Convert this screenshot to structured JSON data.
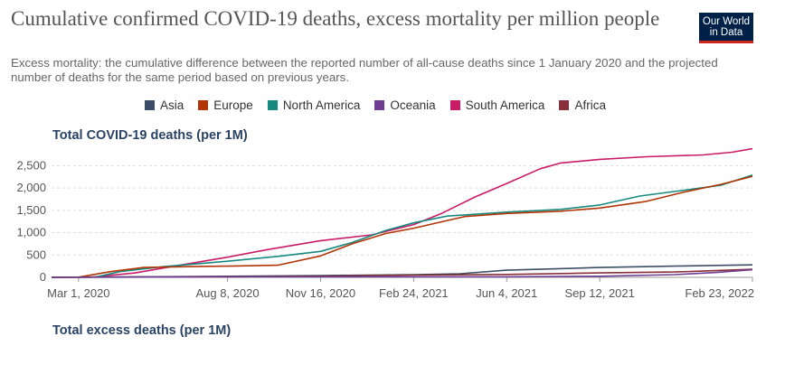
{
  "header": {
    "title": "Cumulative confirmed COVID-19 deaths, excess mortality per million people",
    "subtitle": "Excess mortality: the cumulative difference between the reported number of all-cause deaths since 1 January 2020 and the projected number of deaths for the same period based on previous years.",
    "logo_line1": "Our World",
    "logo_line2": "in Data"
  },
  "legend": [
    {
      "name": "Asia",
      "color": "#3c4e66"
    },
    {
      "name": "Europe",
      "color": "#b13507"
    },
    {
      "name": "North America",
      "color": "#18897e"
    },
    {
      "name": "Oceania",
      "color": "#6d3e91"
    },
    {
      "name": "South America",
      "color": "#c91b68"
    },
    {
      "name": "Africa",
      "color": "#883039"
    }
  ],
  "panels": {
    "deaths_title": "Total COVID-19 deaths (per 1M)",
    "excess_title": "Total excess deaths (per 1M)"
  },
  "chart_data": {
    "type": "line",
    "title": "Total COVID-19 deaths (per 1M)",
    "x_range": [
      "2020-02-01",
      "2022-02-23"
    ],
    "ylim": [
      0,
      2750
    ],
    "y_ticks": [
      0,
      500,
      1000,
      1500,
      2000,
      2500
    ],
    "y_tick_labels": [
      "0",
      "500",
      "1,000",
      "1,500",
      "2,000",
      "2,500"
    ],
    "x_ticks": [
      "2020-03-01",
      "2020-08-08",
      "2020-11-16",
      "2021-02-24",
      "2021-06-04",
      "2021-09-12",
      "2022-02-23"
    ],
    "x_tick_labels": [
      "Mar 1, 2020",
      "Aug 8, 2020",
      "Nov 16, 2020",
      "Feb 24, 2021",
      "Jun 4, 2021",
      "Sep 12, 2021",
      "Feb 23, 2022"
    ],
    "grid": true,
    "legend_position": "top",
    "series": [
      {
        "name": "South America",
        "color": "#c91b68",
        "points": [
          [
            "2020-02-01",
            0
          ],
          [
            "2020-03-15",
            5
          ],
          [
            "2020-05-01",
            100
          ],
          [
            "2020-06-15",
            260
          ],
          [
            "2020-08-08",
            450
          ],
          [
            "2020-09-20",
            620
          ],
          [
            "2020-11-16",
            820
          ],
          [
            "2021-01-10",
            950
          ],
          [
            "2021-02-24",
            1180
          ],
          [
            "2021-03-25",
            1420
          ],
          [
            "2021-05-01",
            1800
          ],
          [
            "2021-06-04",
            2100
          ],
          [
            "2021-07-10",
            2430
          ],
          [
            "2021-08-01",
            2560
          ],
          [
            "2021-09-12",
            2640
          ],
          [
            "2021-11-01",
            2700
          ],
          [
            "2022-01-01",
            2740
          ],
          [
            "2022-02-01",
            2800
          ],
          [
            "2022-02-23",
            2880
          ]
        ]
      },
      {
        "name": "North America",
        "color": "#18897e",
        "points": [
          [
            "2020-02-01",
            0
          ],
          [
            "2020-03-20",
            10
          ],
          [
            "2020-04-15",
            130
          ],
          [
            "2020-06-01",
            240
          ],
          [
            "2020-08-08",
            360
          ],
          [
            "2020-10-01",
            470
          ],
          [
            "2020-11-16",
            580
          ],
          [
            "2020-12-20",
            780
          ],
          [
            "2021-01-25",
            1050
          ],
          [
            "2021-02-24",
            1220
          ],
          [
            "2021-04-01",
            1370
          ],
          [
            "2021-06-04",
            1460
          ],
          [
            "2021-08-01",
            1520
          ],
          [
            "2021-09-12",
            1620
          ],
          [
            "2021-10-25",
            1820
          ],
          [
            "2021-12-01",
            1920
          ],
          [
            "2022-01-20",
            2060
          ],
          [
            "2022-02-23",
            2290
          ]
        ]
      },
      {
        "name": "Europe",
        "color": "#b13507",
        "points": [
          [
            "2020-02-01",
            0
          ],
          [
            "2020-03-01",
            5
          ],
          [
            "2020-04-05",
            130
          ],
          [
            "2020-05-10",
            220
          ],
          [
            "2020-07-01",
            240
          ],
          [
            "2020-08-08",
            250
          ],
          [
            "2020-10-01",
            270
          ],
          [
            "2020-11-16",
            480
          ],
          [
            "2020-12-20",
            750
          ],
          [
            "2021-01-25",
            980
          ],
          [
            "2021-02-24",
            1100
          ],
          [
            "2021-04-20",
            1360
          ],
          [
            "2021-06-04",
            1430
          ],
          [
            "2021-08-01",
            1480
          ],
          [
            "2021-09-12",
            1550
          ],
          [
            "2021-11-01",
            1700
          ],
          [
            "2021-12-10",
            1900
          ],
          [
            "2022-01-20",
            2080
          ],
          [
            "2022-02-23",
            2260
          ]
        ]
      },
      {
        "name": "Asia",
        "color": "#3c4e66",
        "points": [
          [
            "2020-02-01",
            0
          ],
          [
            "2020-06-01",
            15
          ],
          [
            "2020-11-16",
            40
          ],
          [
            "2021-02-24",
            60
          ],
          [
            "2021-04-15",
            80
          ],
          [
            "2021-06-04",
            160
          ],
          [
            "2021-09-12",
            220
          ],
          [
            "2021-12-01",
            250
          ],
          [
            "2022-02-23",
            280
          ]
        ]
      },
      {
        "name": "Africa",
        "color": "#883039",
        "points": [
          [
            "2020-02-01",
            0
          ],
          [
            "2020-08-08",
            15
          ],
          [
            "2020-11-16",
            25
          ],
          [
            "2021-02-24",
            50
          ],
          [
            "2021-06-04",
            65
          ],
          [
            "2021-09-12",
            100
          ],
          [
            "2021-12-01",
            120
          ],
          [
            "2022-02-23",
            180
          ]
        ]
      },
      {
        "name": "Oceania",
        "color": "#6d3e91",
        "points": [
          [
            "2020-02-01",
            0
          ],
          [
            "2020-08-08",
            10
          ],
          [
            "2021-06-04",
            12
          ],
          [
            "2021-09-12",
            25
          ],
          [
            "2021-12-01",
            60
          ],
          [
            "2022-01-15",
            110
          ],
          [
            "2022-02-23",
            170
          ]
        ]
      }
    ]
  }
}
